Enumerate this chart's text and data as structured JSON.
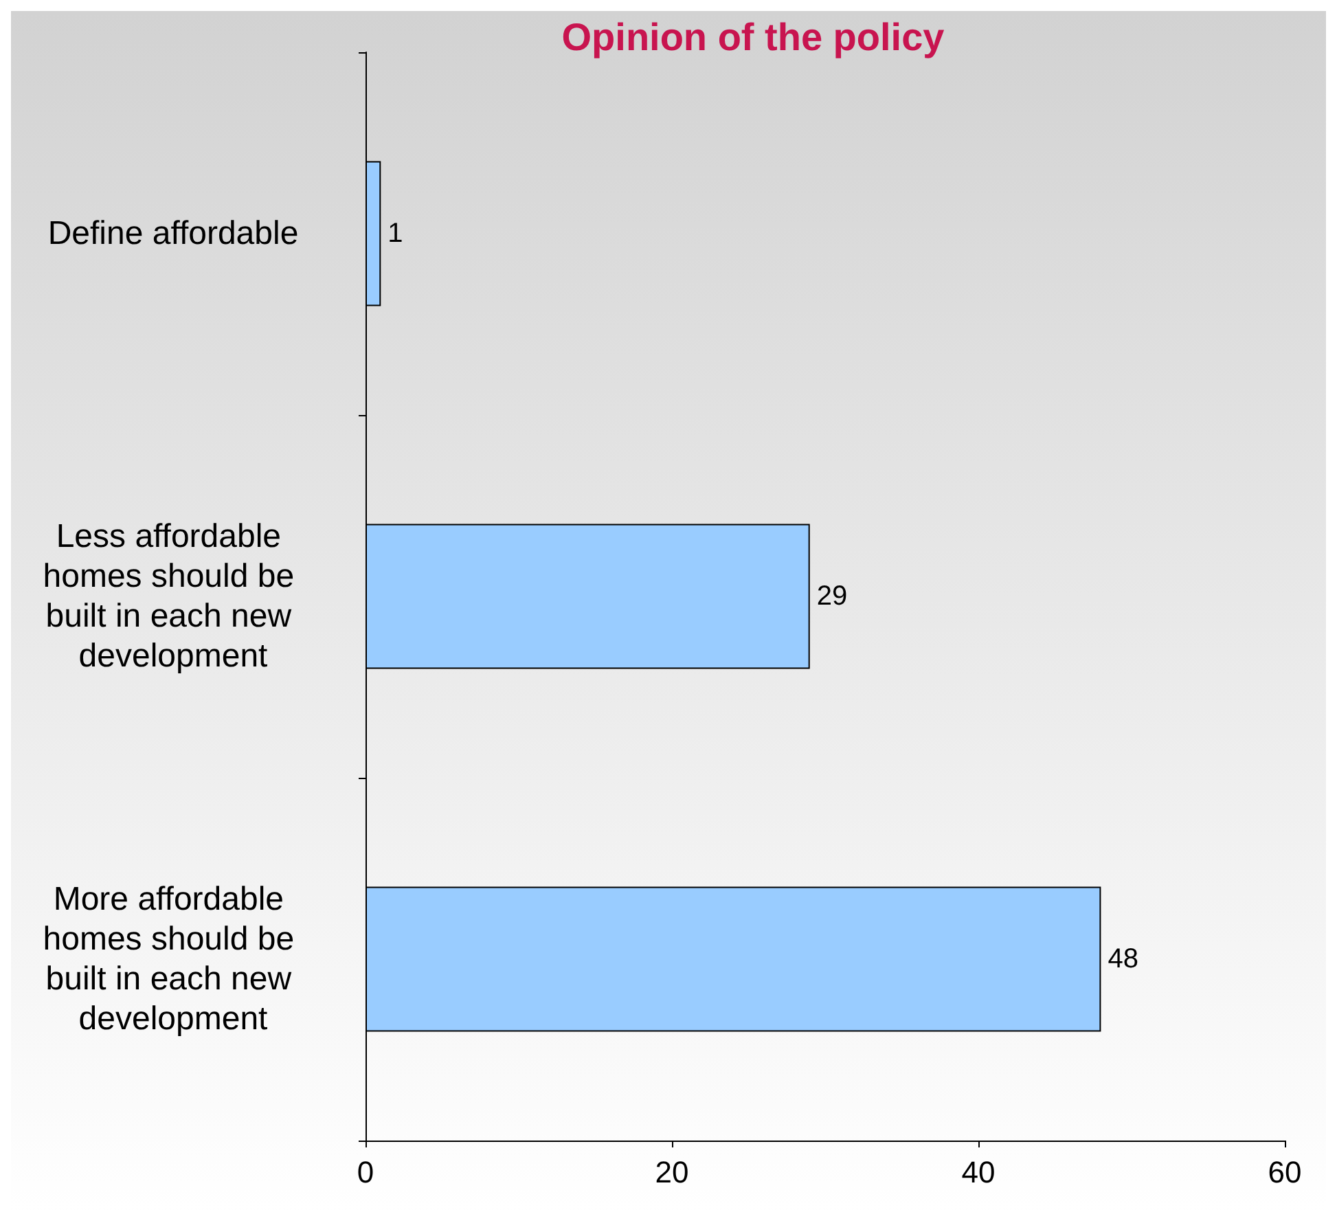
{
  "chart_data": {
    "type": "bar",
    "orientation": "horizontal",
    "title": "Opinion of the policy",
    "categories": [
      "Define affordable",
      "Less affordable homes should be built in each new development",
      "More affordable homes should be built in each new development"
    ],
    "values": [
      1,
      29,
      48
    ],
    "color": "#99ccff",
    "xlim": [
      0,
      60
    ],
    "xticks": [
      0,
      20,
      40,
      60
    ],
    "data_labels": true
  }
}
